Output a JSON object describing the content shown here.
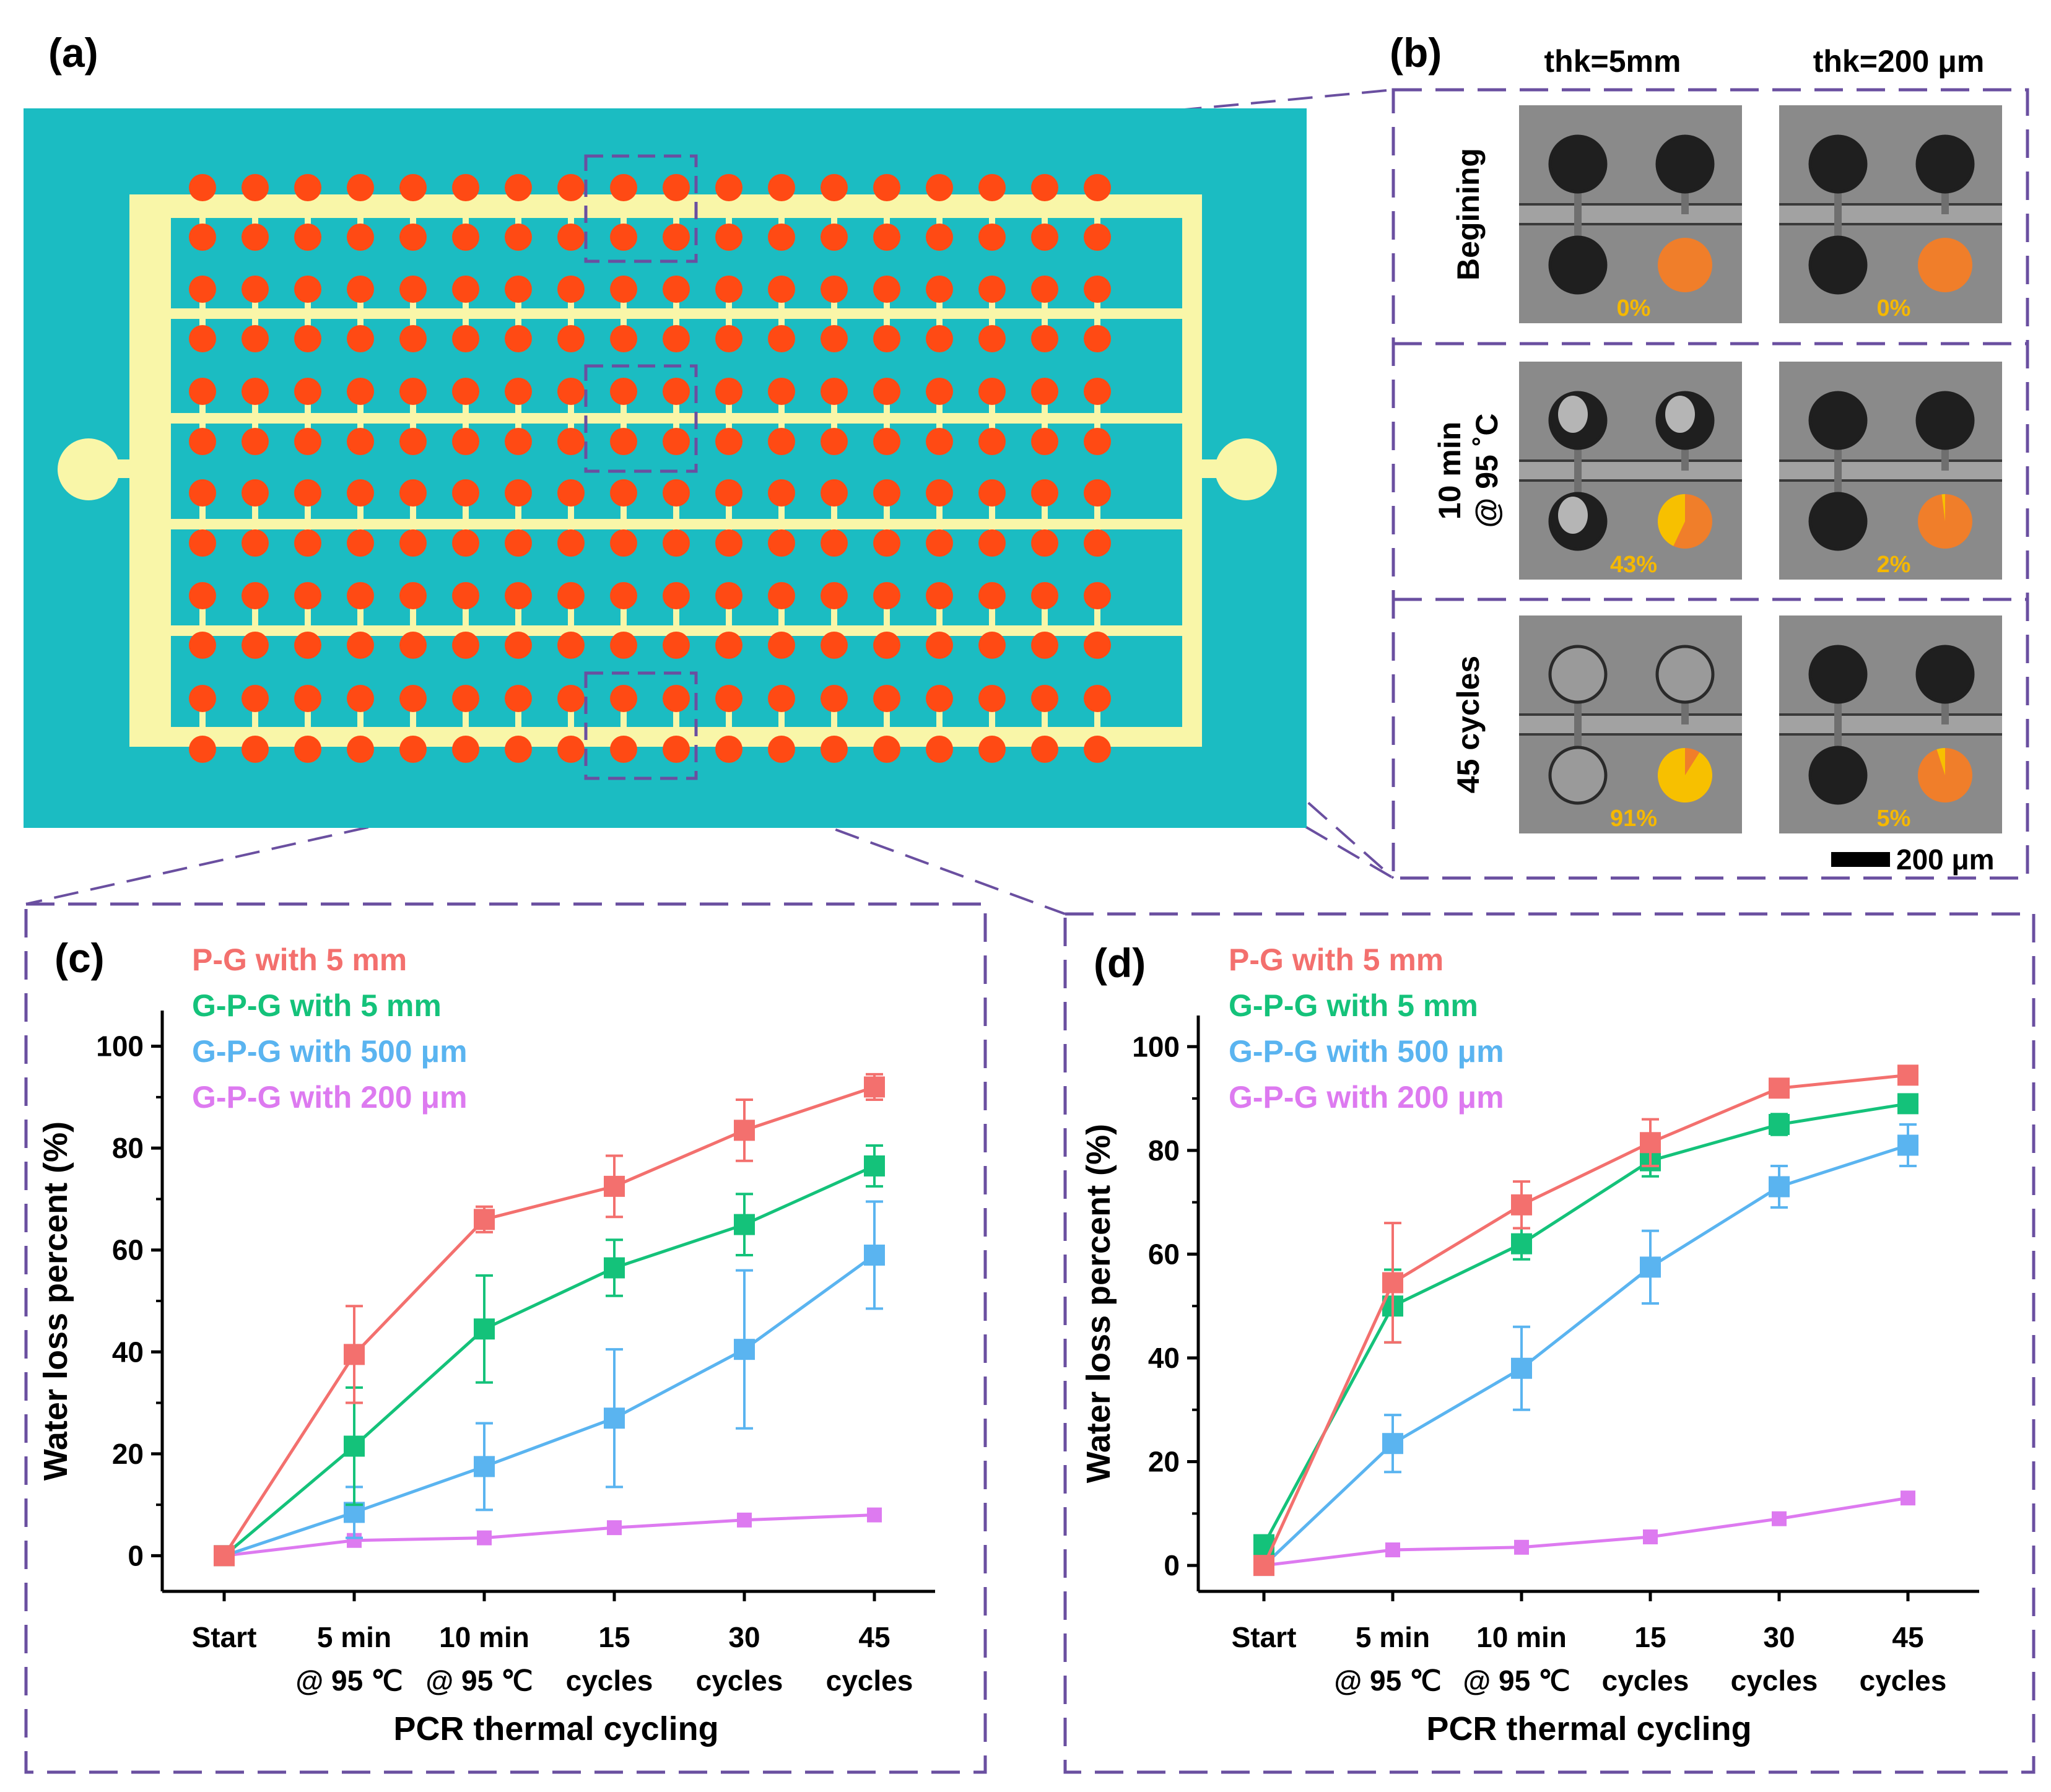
{
  "panel_labels": {
    "a": "(a)",
    "b": "(b)",
    "c": "(c)",
    "d": "(d)"
  },
  "panel_b": {
    "columns": [
      "thk=5mm",
      "thk=200 μm"
    ],
    "rows": [
      {
        "label": [
          "Begining"
        ],
        "pct": [
          "0%",
          "0%"
        ],
        "frac": [
          0,
          0
        ]
      },
      {
        "label": [
          "10 min",
          "@ 95 ˚C"
        ],
        "pct": [
          "43%",
          "2%"
        ],
        "frac": [
          0.43,
          0.02
        ]
      },
      {
        "label": [
          "45 cycles"
        ],
        "pct": [
          "91%",
          "5%"
        ],
        "frac": [
          0.91,
          0.05
        ]
      }
    ],
    "scale_bar": "200 μm"
  },
  "colors": {
    "substrate": "#1bbcc2",
    "channel": "#f9f6a8",
    "chamber": "#ff4a14",
    "frame": "#6a4fa0",
    "pie_remaining": "#f07e2a",
    "pie_lost": "#f7c000",
    "series": [
      "#f3706e",
      "#14c27a",
      "#5ab4f0",
      "#dd7af0"
    ]
  },
  "chart_data": [
    {
      "type": "line",
      "panel": "(c)",
      "categories": [
        [
          "Start"
        ],
        [
          "5 min",
          "@ 95 ℃"
        ],
        [
          "10 min",
          "@ 95 ℃"
        ],
        [
          "15",
          "cycles"
        ],
        [
          "30",
          "cycles"
        ],
        [
          "45",
          "cycles"
        ]
      ],
      "xlabel": "PCR thermal cycling",
      "ylabel": "Water loss percent (%)",
      "ylim": [
        -7,
        107
      ],
      "yticks": [
        0,
        20,
        40,
        60,
        80,
        100
      ],
      "series": [
        {
          "name": "P-G with 5 mm",
          "values": [
            0,
            39.5,
            66,
            72.5,
            83.5,
            92
          ],
          "errors": [
            0,
            9.5,
            2.5,
            6,
            6,
            2.5
          ]
        },
        {
          "name": "G-P-G with 5 mm",
          "values": [
            0,
            21.5,
            44.5,
            56.5,
            65,
            76.5
          ],
          "errors": [
            0,
            11.5,
            10.5,
            5.5,
            6,
            4
          ]
        },
        {
          "name": "G-P-G with 500 μm",
          "values": [
            0,
            8.5,
            17.5,
            27,
            40.5,
            59
          ],
          "errors": [
            0,
            5,
            8.5,
            13.5,
            15.5,
            10.5
          ]
        },
        {
          "name": "G-P-G with 200 μm",
          "values": [
            0,
            3,
            3.5,
            5.5,
            7,
            8
          ],
          "errors": [
            0,
            0,
            0,
            0,
            0,
            0
          ]
        }
      ]
    },
    {
      "type": "line",
      "panel": "(d)",
      "categories": [
        [
          "Start"
        ],
        [
          "5 min",
          "@ 95 ℃"
        ],
        [
          "10 min",
          "@ 95 ℃"
        ],
        [
          "15",
          "cycles"
        ],
        [
          "30",
          "cycles"
        ],
        [
          "45",
          "cycles"
        ]
      ],
      "xlabel": "PCR thermal cycling",
      "ylabel": "Water loss percent (%)",
      "ylim": [
        -5,
        106
      ],
      "yticks": [
        0,
        20,
        40,
        60,
        80,
        100
      ],
      "series": [
        {
          "name": "P-G with 5 mm",
          "values": [
            0,
            54.5,
            69.5,
            81.5,
            92,
            94.5
          ],
          "errors": [
            0,
            11.5,
            4.5,
            4.5,
            1.5,
            0
          ]
        },
        {
          "name": "G-P-G with 5 mm",
          "values": [
            4,
            50,
            62,
            78,
            85,
            89
          ],
          "errors": [
            0,
            7,
            3,
            3,
            2,
            0
          ]
        },
        {
          "name": "G-P-G with 500 μm",
          "values": [
            0,
            23.5,
            38,
            57.5,
            73,
            81
          ],
          "errors": [
            0,
            5.5,
            8,
            7,
            4,
            4
          ]
        },
        {
          "name": "G-P-G with 200 μm",
          "values": [
            0,
            3,
            3.5,
            5.5,
            9,
            13
          ],
          "errors": [
            0,
            0,
            0,
            0,
            0,
            0
          ]
        }
      ]
    }
  ]
}
